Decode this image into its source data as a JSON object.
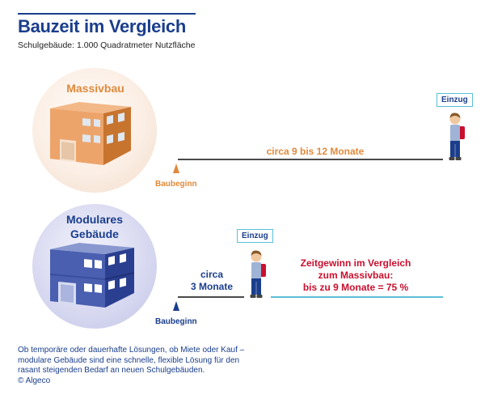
{
  "header": {
    "title": "Bauzeit im Vergleich",
    "subtitle": "Schulgebäude: 1.000 Quadratmeter Nutzfläche"
  },
  "massivbau": {
    "label": "Massivbau",
    "start_label": "Baubeginn",
    "duration_label": "circa 9 bis 12 Monate",
    "move_in_label": "Einzug",
    "color": "#e08a3c"
  },
  "modular": {
    "label_line1": "Modulares",
    "label_line2": "Gebäude",
    "start_label": "Baubeginn",
    "duration_line1": "circa",
    "duration_line2": "3 Monate",
    "move_in_label": "Einzug",
    "color": "#1a3e8c"
  },
  "time_gain": {
    "line1": "Zeitgewinn im Vergleich",
    "line2": "zum Massivbau:",
    "line3": "bis zu 9 Monate = 75 %",
    "color": "#c8102e"
  },
  "footer": {
    "line1": "Ob temporäre oder dauerhafte Lösungen, ob Miete oder Kauf –",
    "line2": "modulare Gebäude sind eine schnelle, flexible Lösung für den",
    "line3": "rasant steigenden Bedarf an neuen Schulgebäuden.",
    "line4": "© Algeco"
  },
  "icons": {
    "massiv_building": "orange-building-icon",
    "modular_building": "blue-modular-building-icon",
    "student": "student-with-backpack-icon"
  }
}
